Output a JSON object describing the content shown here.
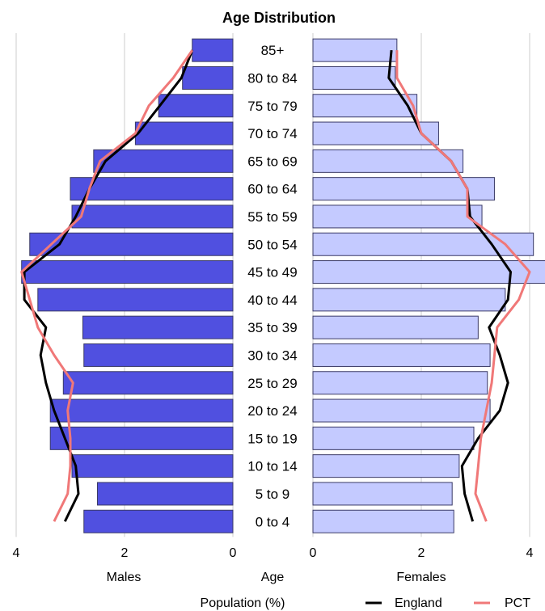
{
  "chart_data": {
    "type": "bar",
    "title": "Age Distribution",
    "categories": [
      "85+",
      "80 to 84",
      "75 to 79",
      "70 to 74",
      "65 to 69",
      "60 to 64",
      "55 to 59",
      "50 to 54",
      "45 to 49",
      "40 to 44",
      "35 to 39",
      "30 to 34",
      "25 to 29",
      "20 to 24",
      "15 to 19",
      "10 to 14",
      "5 to 9",
      "0 to 4"
    ],
    "males_label": "Males",
    "females_label": "Females",
    "age_label": "Age",
    "xlabel": "Population (%)",
    "xlim": [
      0,
      4
    ],
    "ticks": [
      "4",
      "2",
      "0",
      "0",
      "2",
      "4"
    ],
    "bars": {
      "males": [
        0.75,
        0.93,
        1.37,
        1.8,
        2.57,
        3.0,
        2.97,
        3.75,
        3.9,
        3.6,
        2.77,
        2.75,
        3.13,
        3.37,
        3.37,
        2.97,
        2.5,
        2.75
      ],
      "females": [
        1.55,
        1.52,
        1.92,
        2.32,
        2.77,
        3.35,
        3.12,
        4.07,
        4.35,
        3.55,
        3.05,
        3.27,
        3.22,
        3.27,
        2.97,
        2.7,
        2.57,
        2.6
      ]
    },
    "series": [
      {
        "name": "England",
        "males": [
          0.75,
          0.95,
          1.35,
          1.75,
          2.35,
          2.65,
          2.9,
          3.2,
          3.85,
          3.85,
          3.45,
          3.55,
          3.45,
          3.3,
          3.1,
          2.9,
          2.85,
          3.1
        ],
        "females": [
          1.45,
          1.4,
          1.75,
          2.0,
          2.55,
          2.85,
          2.9,
          3.3,
          3.65,
          3.6,
          3.25,
          3.45,
          3.6,
          3.45,
          3.05,
          2.75,
          2.8,
          2.95
        ]
      },
      {
        "name": "PCT",
        "males": [
          0.75,
          1.1,
          1.55,
          1.8,
          2.45,
          2.65,
          2.8,
          3.35,
          3.9,
          3.75,
          3.6,
          3.3,
          2.95,
          3.05,
          3.0,
          3.0,
          3.05,
          3.3
        ],
        "females": [
          1.55,
          1.55,
          1.85,
          2.0,
          2.55,
          2.85,
          2.85,
          3.55,
          4.0,
          3.8,
          3.4,
          3.35,
          3.3,
          3.2,
          3.1,
          3.05,
          3.0,
          3.2
        ]
      }
    ],
    "colors": {
      "male_bar": "#5050e0",
      "female_bar": "#c4caff",
      "bar_border": "#3a3a66",
      "england": "#000000",
      "pct": "#f07878",
      "grid": "#cccccc"
    },
    "grid": true,
    "legend_position": "bottom-right"
  }
}
